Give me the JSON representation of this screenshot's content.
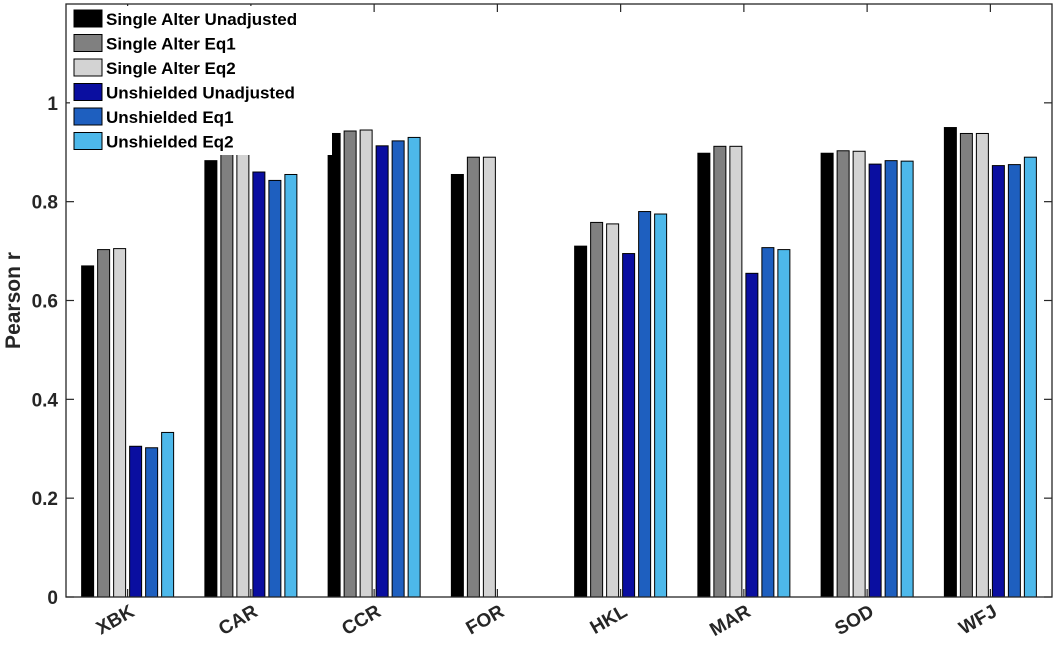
{
  "chart_data": {
    "type": "bar",
    "title": "",
    "xlabel": "",
    "ylabel": "Pearson r",
    "ylim": [
      0,
      1.2
    ],
    "yticks": [
      "0",
      "0.2",
      "0.4",
      "0.6",
      "0.8",
      "1"
    ],
    "ytick_values": [
      0,
      0.2,
      0.4,
      0.6,
      0.8,
      1.0
    ],
    "categories": [
      "XBK",
      "CAR",
      "CCR",
      "FOR",
      "HKL",
      "MAR",
      "SOD",
      "WFJ"
    ],
    "legend_position": "top-left",
    "grid": false,
    "series": [
      {
        "name": "Single Alter Unadjusted",
        "color": "#000000",
        "values": [
          0.67,
          0.883,
          0.938,
          0.855,
          0.71,
          0.898,
          0.898,
          0.95
        ]
      },
      {
        "name": "Single Alter Eq1",
        "color": "#808080",
        "values": [
          0.703,
          0.902,
          0.943,
          0.89,
          0.758,
          0.912,
          0.903,
          0.938
        ]
      },
      {
        "name": "Single Alter Eq2",
        "color": "#d3d3d3",
        "values": [
          0.705,
          0.905,
          0.945,
          0.89,
          0.755,
          0.912,
          0.902,
          0.938
        ]
      },
      {
        "name": "Unshielded Unadjusted",
        "color": "#0a0ea0",
        "values": [
          0.305,
          0.86,
          0.913,
          null,
          0.695,
          0.655,
          0.876,
          0.873
        ]
      },
      {
        "name": "Unshielded Eq1",
        "color": "#1e5fbf",
        "values": [
          0.302,
          0.843,
          0.923,
          null,
          0.78,
          0.707,
          0.883,
          0.875
        ]
      },
      {
        "name": "Unshielded Eq2",
        "color": "#4db8ea",
        "values": [
          0.333,
          0.855,
          0.93,
          null,
          0.775,
          0.703,
          0.882,
          0.89
        ]
      }
    ]
  }
}
